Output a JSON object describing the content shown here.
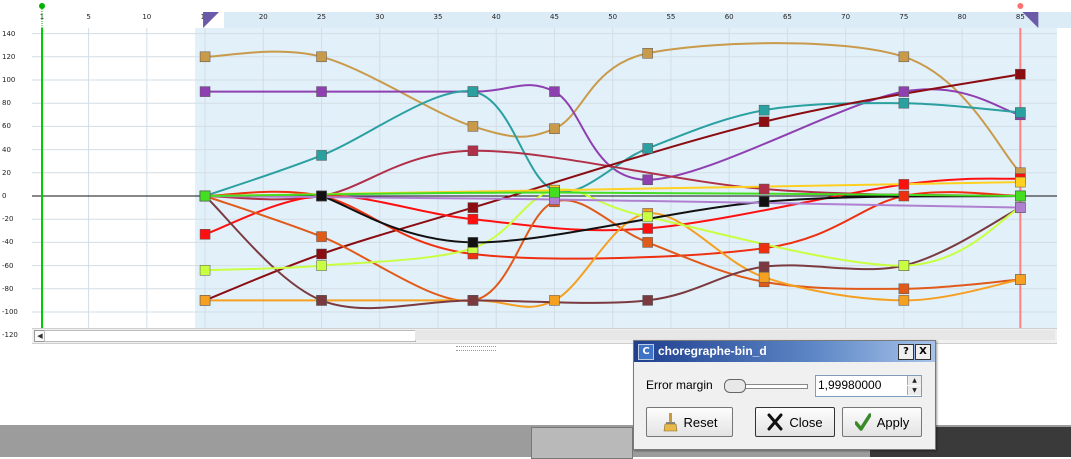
{
  "ruler": {
    "ticks": [
      "1",
      "5",
      "10",
      "15",
      "20",
      "25",
      "30",
      "35",
      "40",
      "45",
      "50",
      "55",
      "60",
      "65",
      "70",
      "75",
      "80",
      "85"
    ]
  },
  "y_axis": {
    "ticks": [
      "140",
      "120",
      "100",
      "80",
      "60",
      "40",
      "20",
      "0",
      "-20",
      "-40",
      "-60",
      "-80",
      "-100",
      "-120"
    ]
  },
  "dialog": {
    "title": "choregraphe-bin_d",
    "app_icon": "C",
    "help_label": "?",
    "close_label": "X",
    "error_margin_label": "Error margin",
    "error_margin_value": "1,99980000",
    "slider_level": 0.0,
    "reset_label": "Reset",
    "close_button_label": "Close",
    "apply_label": "Apply"
  },
  "icons": {
    "reset": "brush-icon",
    "close": "x-icon",
    "apply": "check-icon",
    "scroll_left": "arrow-left-icon",
    "spin_up": "arrow-up-icon",
    "spin_down": "arrow-down-icon"
  },
  "colors": {
    "selection": "#e2f0fa",
    "playhead": "#ff0000",
    "start_marker": "#00cc00",
    "titlebar": "#1f3f8f"
  },
  "curves": [
    {
      "color": "#c89a4a",
      "points": [
        [
          15,
          120
        ],
        [
          25,
          120
        ],
        [
          38,
          60
        ],
        [
          45,
          58
        ],
        [
          53,
          123
        ],
        [
          75,
          120
        ],
        [
          85,
          20
        ]
      ]
    },
    {
      "color": "#8e3fb0",
      "points": [
        [
          15,
          90
        ],
        [
          25,
          90
        ],
        [
          38,
          90
        ],
        [
          45,
          90
        ],
        [
          53,
          14
        ],
        [
          75,
          90
        ],
        [
          85,
          70
        ]
      ]
    },
    {
      "color": "#2aa0a0",
      "points": [
        [
          15,
          0
        ],
        [
          25,
          35
        ],
        [
          38,
          90
        ],
        [
          45,
          5
        ],
        [
          53,
          41
        ],
        [
          63,
          74
        ],
        [
          75,
          80
        ],
        [
          85,
          72
        ]
      ]
    },
    {
      "color": "#b03048",
      "points": [
        [
          15,
          0
        ],
        [
          25,
          0
        ],
        [
          38,
          39
        ],
        [
          63,
          6
        ],
        [
          85,
          0
        ]
      ]
    },
    {
      "color": "#8b0d12",
      "points": [
        [
          15,
          -90
        ],
        [
          25,
          -50
        ],
        [
          38,
          -10
        ],
        [
          63,
          64
        ],
        [
          85,
          105
        ]
      ]
    },
    {
      "color": "#ff1010",
      "points": [
        [
          15,
          -33
        ],
        [
          25,
          0
        ],
        [
          38,
          -20
        ],
        [
          53,
          -28
        ],
        [
          75,
          10
        ],
        [
          85,
          15
        ]
      ]
    },
    {
      "color": "#ee3010",
      "points": [
        [
          15,
          0
        ],
        [
          25,
          0
        ],
        [
          38,
          -50
        ],
        [
          63,
          -45
        ],
        [
          75,
          0
        ],
        [
          85,
          0
        ]
      ]
    },
    {
      "color": "#e05a1a",
      "points": [
        [
          15,
          0
        ],
        [
          25,
          -35
        ],
        [
          38,
          -90
        ],
        [
          45,
          -5
        ],
        [
          53,
          -40
        ],
        [
          63,
          -74
        ],
        [
          75,
          -80
        ],
        [
          85,
          -72
        ]
      ]
    },
    {
      "color": "#f5a020",
      "points": [
        [
          15,
          -90
        ],
        [
          25,
          -90
        ],
        [
          38,
          -90
        ],
        [
          45,
          -90
        ],
        [
          53,
          -15
        ],
        [
          63,
          -70
        ],
        [
          75,
          -90
        ],
        [
          85,
          -72
        ]
      ]
    },
    {
      "color": "#7a3a40",
      "points": [
        [
          15,
          0
        ],
        [
          25,
          -90
        ],
        [
          38,
          -90
        ],
        [
          53,
          -90
        ],
        [
          63,
          -61
        ],
        [
          75,
          -60
        ],
        [
          85,
          -10
        ]
      ]
    },
    {
      "color": "#c8ff40",
      "points": [
        [
          15,
          -64
        ],
        [
          25,
          -60
        ],
        [
          38,
          -45
        ],
        [
          45,
          5
        ],
        [
          53,
          -18
        ],
        [
          75,
          -60
        ],
        [
          85,
          -10
        ]
      ]
    },
    {
      "color": "#111111",
      "points": [
        [
          25,
          0
        ],
        [
          38,
          -40
        ],
        [
          63,
          -5
        ],
        [
          85,
          0
        ]
      ]
    },
    {
      "color": "#ffd020",
      "points": [
        [
          15,
          0
        ],
        [
          45,
          5
        ],
        [
          85,
          12
        ]
      ]
    },
    {
      "color": "#b080d0",
      "points": [
        [
          15,
          0
        ],
        [
          45,
          -3
        ],
        [
          85,
          -10
        ]
      ]
    },
    {
      "color": "#44dd22",
      "points": [
        [
          15,
          0
        ],
        [
          45,
          3
        ],
        [
          85,
          0
        ]
      ]
    }
  ]
}
